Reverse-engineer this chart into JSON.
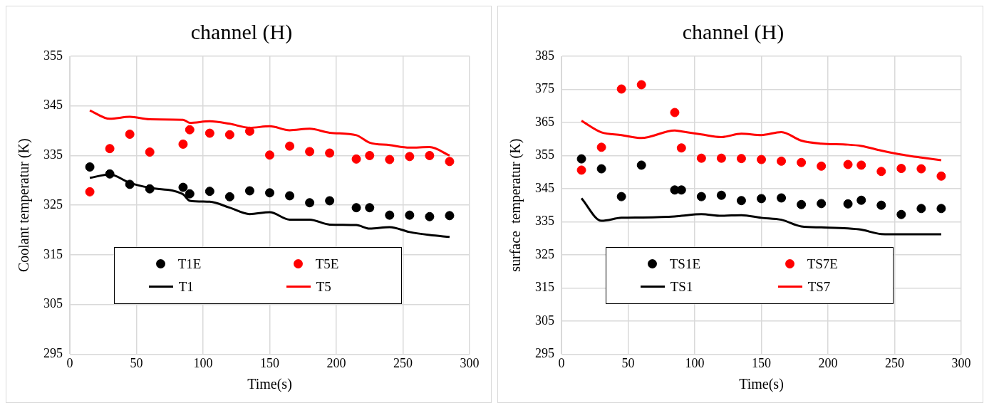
{
  "chart_data": [
    {
      "type": "scatter",
      "title": "channel (H)",
      "xlabel": "Time(s)",
      "ylabel": "Coolant temperatur (K)",
      "x": [
        15,
        30,
        45,
        60,
        85,
        90,
        105,
        120,
        135,
        150,
        165,
        180,
        195,
        215,
        225,
        240,
        255,
        270,
        285
      ],
      "xlim": [
        0,
        300
      ],
      "xticks": [
        0,
        50,
        100,
        150,
        200,
        250,
        300
      ],
      "ylim": [
        295,
        355
      ],
      "yticks": [
        295,
        305,
        315,
        325,
        335,
        345,
        355
      ],
      "grid": true,
      "legend": "bottom left",
      "marker": "circle",
      "series": [
        {
          "name": "T1E",
          "color": "#000000",
          "values": [
            332.7,
            331.3,
            329.2,
            328.3,
            328.6,
            327.3,
            327.8,
            326.7,
            327.9,
            327.5,
            326.9,
            325.5,
            325.9,
            324.5,
            324.5,
            323.0,
            323.0,
            322.7,
            322.9
          ]
        },
        {
          "name": "T5E",
          "color": "#ff0000",
          "values": [
            327.7,
            336.4,
            339.3,
            335.7,
            337.3,
            340.2,
            339.5,
            339.2,
            339.9,
            335.1,
            336.9,
            335.8,
            335.5,
            334.3,
            335.0,
            334.2,
            334.8,
            335.0,
            333.8
          ]
        },
        {
          "name": "T1",
          "type": "line",
          "marker": "none",
          "color": "#000000",
          "values": [
            330.5,
            331.2,
            329.5,
            328.5,
            327.2,
            325.9,
            325.7,
            324.5,
            323.2,
            323.6,
            322.1,
            322.1,
            321.1,
            321.0,
            320.3,
            320.6,
            319.6,
            319.0,
            318.6
          ]
        },
        {
          "name": "T5",
          "type": "line",
          "marker": "none",
          "color": "#ff0000",
          "values": [
            344.1,
            342.4,
            342.8,
            342.3,
            342.2,
            341.6,
            341.9,
            341.4,
            340.6,
            340.9,
            340.1,
            340.4,
            339.6,
            339.1,
            337.6,
            337.1,
            336.6,
            336.7,
            335.0
          ]
        }
      ]
    },
    {
      "type": "scatter",
      "title": "channel (H)",
      "xlabel": "Time(s)",
      "ylabel": "surface  temperatur (K)",
      "x": [
        15,
        30,
        45,
        60,
        85,
        90,
        105,
        120,
        135,
        150,
        165,
        180,
        195,
        215,
        225,
        240,
        255,
        270,
        285
      ],
      "xlim": [
        0,
        300
      ],
      "xticks": [
        0,
        50,
        100,
        150,
        200,
        250,
        300
      ],
      "ylim": [
        295,
        385
      ],
      "yticks": [
        295,
        305,
        315,
        325,
        335,
        345,
        355,
        365,
        375,
        385
      ],
      "grid": true,
      "legend": "bottom left",
      "marker": "circle",
      "series": [
        {
          "name": "TS1E",
          "color": "#000000",
          "values": [
            354.0,
            351.0,
            342.6,
            352.1,
            344.6,
            344.6,
            342.6,
            343.0,
            341.4,
            342.0,
            342.2,
            340.2,
            340.5,
            340.4,
            341.5,
            340.0,
            337.2,
            339.0,
            339.0
          ]
        },
        {
          "name": "TS7E",
          "color": "#ff0000",
          "values": [
            350.6,
            357.5,
            375.1,
            376.4,
            368.0,
            357.3,
            354.2,
            354.2,
            354.1,
            353.8,
            353.3,
            352.9,
            351.8,
            352.3,
            352.1,
            350.2,
            351.1,
            351.0,
            348.8
          ]
        },
        {
          "name": "TS1",
          "type": "line",
          "marker": "none",
          "color": "#000000",
          "values": [
            342.1,
            335.3,
            336.2,
            336.3,
            336.6,
            336.8,
            337.3,
            336.8,
            337.0,
            336.2,
            335.6,
            333.6,
            333.3,
            333.0,
            332.6,
            331.3,
            331.2,
            331.2,
            331.2
          ]
        },
        {
          "name": "TS7",
          "type": "line",
          "marker": "none",
          "color": "#ff0000",
          "values": [
            365.5,
            362.0,
            361.2,
            360.3,
            362.6,
            362.3,
            361.4,
            360.6,
            361.6,
            361.2,
            362.1,
            359.5,
            358.6,
            358.3,
            357.9,
            356.5,
            355.3,
            354.4,
            353.6
          ]
        }
      ]
    }
  ]
}
